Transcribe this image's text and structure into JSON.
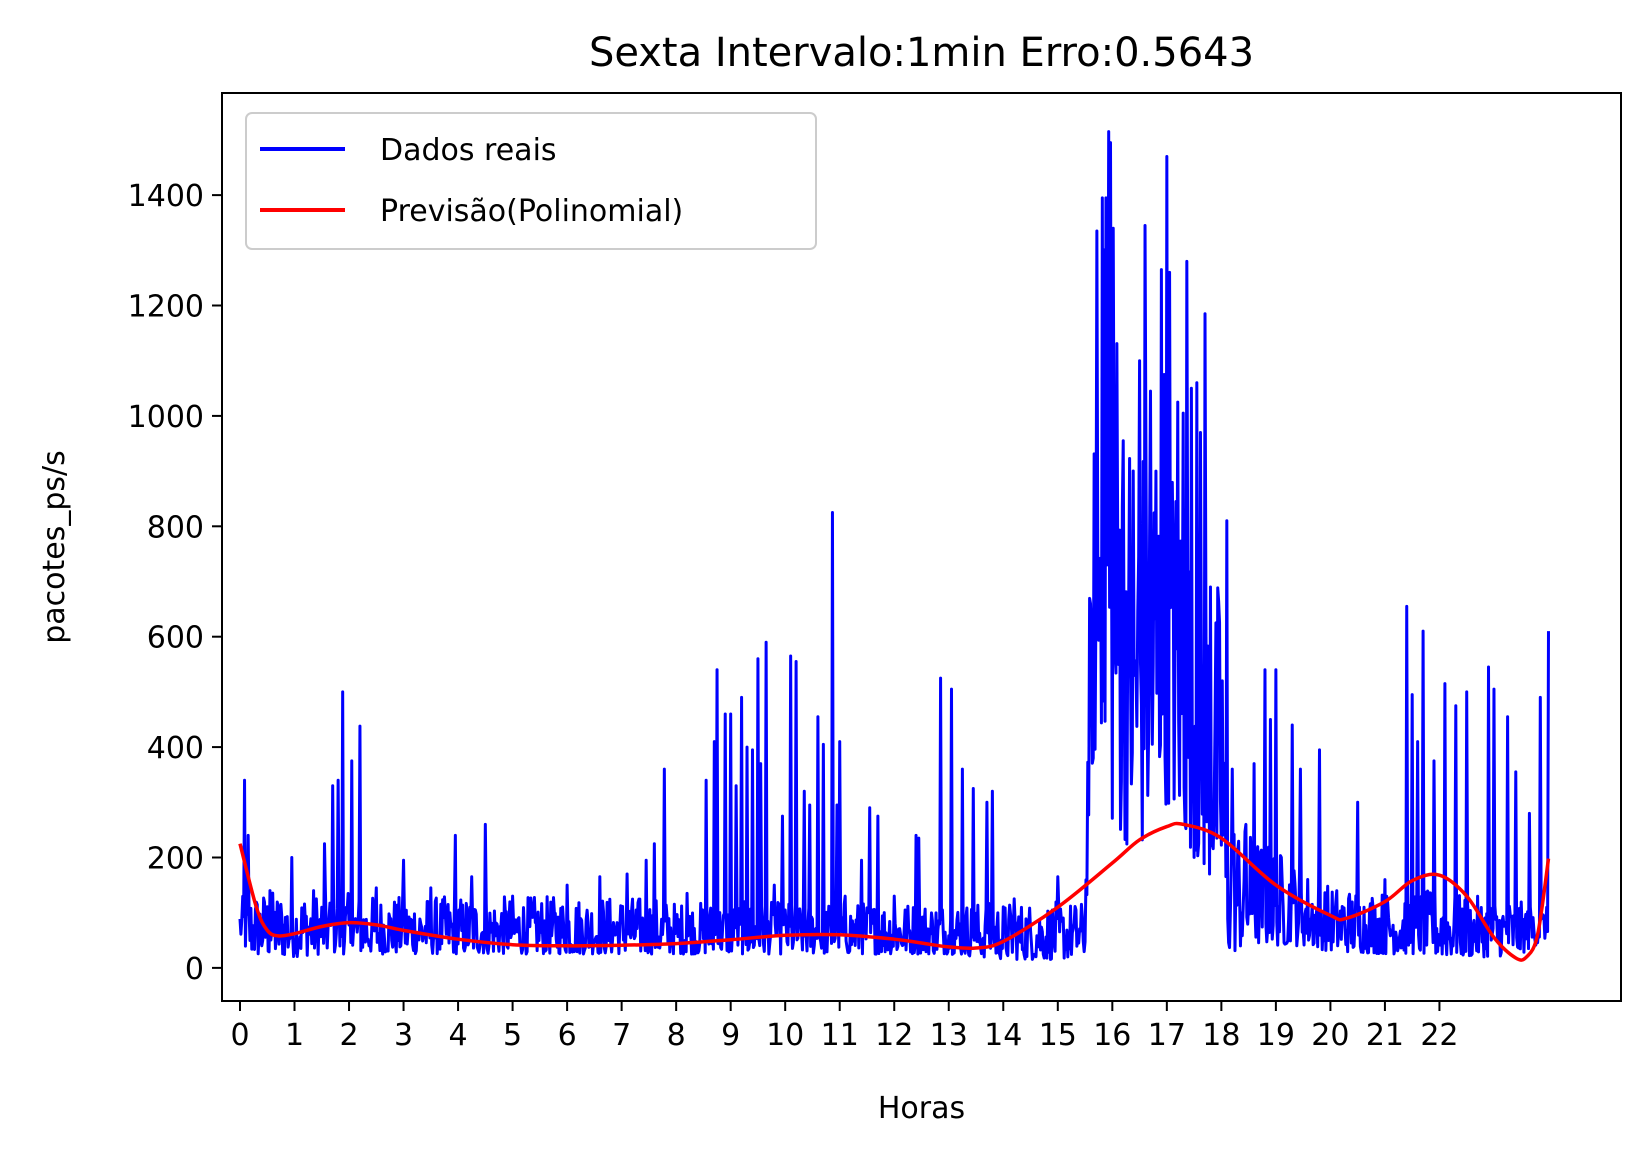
{
  "chart_data": {
    "type": "line",
    "title": "Sexta Intervalo:1min Erro:0.5643",
    "xlabel": "Horas",
    "ylabel": "pacotes_ps/s",
    "xlim": [
      -0.33,
      25.33
    ],
    "ylim": [
      -60,
      1585
    ],
    "x_ticks": [
      0,
      1,
      2,
      3,
      4,
      5,
      6,
      7,
      8,
      9,
      10,
      11,
      12,
      13,
      14,
      15,
      16,
      17,
      18,
      19,
      20,
      21,
      22
    ],
    "x_tick_labels": [
      "0",
      "1",
      "2",
      "3",
      "4",
      "5",
      "6",
      "7",
      "8",
      "9",
      "10",
      "11",
      "12",
      "13",
      "14",
      "15",
      "16",
      "17",
      "18",
      "19",
      "20",
      "21",
      "22"
    ],
    "y_ticks": [
      0,
      200,
      400,
      600,
      800,
      1000,
      1200,
      1400
    ],
    "y_tick_labels": [
      "0",
      "200",
      "400",
      "600",
      "800",
      "1000",
      "1200",
      "1400"
    ],
    "grid": false,
    "legend_position": "upper-left",
    "colors": {
      "real": "#0000ff",
      "pred": "#ff0000"
    },
    "series": [
      {
        "name": "Dados reais",
        "kind": "noisy-line",
        "x": [
          0,
          0.1,
          0.25,
          0.5,
          1,
          1.5,
          2,
          2.5,
          3,
          4,
          5,
          6,
          7,
          7.5,
          8,
          8.5,
          9,
          9.5,
          10,
          10.5,
          11,
          12,
          13,
          13.5,
          14,
          14.5,
          15,
          15.5,
          15.6,
          15.8,
          16,
          16.5,
          17,
          17.5,
          18,
          18.1,
          18.5,
          19,
          19.5,
          20,
          21,
          21.5,
          22,
          22.5,
          23,
          23.5,
          24
        ],
        "low": [
          50,
          30,
          20,
          20,
          20,
          25,
          25,
          25,
          25,
          25,
          25,
          25,
          25,
          25,
          25,
          25,
          25,
          25,
          25,
          25,
          25,
          25,
          25,
          20,
          15,
          15,
          15,
          20,
          350,
          400,
          250,
          200,
          300,
          200,
          120,
          20,
          40,
          40,
          40,
          30,
          25,
          25,
          20,
          20,
          20,
          25,
          55
        ],
        "high": [
          120,
          140,
          140,
          140,
          140,
          140,
          135,
          130,
          130,
          130,
          130,
          130,
          130,
          130,
          120,
          120,
          120,
          120,
          120,
          120,
          120,
          120,
          120,
          120,
          120,
          120,
          120,
          120,
          800,
          1350,
          1300,
          1000,
          1000,
          800,
          700,
          300,
          250,
          220,
          180,
          150,
          140,
          140,
          140,
          130,
          130,
          120,
          110
        ],
        "peaks": [
          [
            0.08,
            340
          ],
          [
            0.15,
            240
          ],
          [
            0.55,
            140
          ],
          [
            0.95,
            200
          ],
          [
            1.35,
            140
          ],
          [
            1.55,
            225
          ],
          [
            1.7,
            330
          ],
          [
            1.8,
            340
          ],
          [
            1.88,
            500
          ],
          [
            2.05,
            375
          ],
          [
            2.2,
            438
          ],
          [
            2.5,
            145
          ],
          [
            3.0,
            195
          ],
          [
            3.5,
            145
          ],
          [
            3.95,
            240
          ],
          [
            4.25,
            165
          ],
          [
            4.5,
            260
          ],
          [
            5.0,
            130
          ],
          [
            6.0,
            150
          ],
          [
            6.6,
            165
          ],
          [
            7.1,
            170
          ],
          [
            7.45,
            195
          ],
          [
            7.6,
            225
          ],
          [
            7.78,
            360
          ],
          [
            8.2,
            135
          ],
          [
            8.55,
            340
          ],
          [
            8.7,
            410
          ],
          [
            8.75,
            540
          ],
          [
            8.9,
            460
          ],
          [
            9.0,
            460
          ],
          [
            9.1,
            330
          ],
          [
            9.2,
            490
          ],
          [
            9.3,
            400
          ],
          [
            9.4,
            395
          ],
          [
            9.5,
            560
          ],
          [
            9.55,
            370
          ],
          [
            9.65,
            590
          ],
          [
            9.8,
            150
          ],
          [
            9.95,
            275
          ],
          [
            10.1,
            565
          ],
          [
            10.2,
            555
          ],
          [
            10.35,
            320
          ],
          [
            10.45,
            295
          ],
          [
            10.6,
            455
          ],
          [
            10.7,
            405
          ],
          [
            10.87,
            825
          ],
          [
            10.95,
            295
          ],
          [
            11.0,
            410
          ],
          [
            11.1,
            130
          ],
          [
            11.4,
            195
          ],
          [
            11.55,
            290
          ],
          [
            11.7,
            275
          ],
          [
            12.0,
            130
          ],
          [
            12.4,
            240
          ],
          [
            12.45,
            235
          ],
          [
            12.85,
            525
          ],
          [
            13.05,
            505
          ],
          [
            13.25,
            360
          ],
          [
            13.45,
            325
          ],
          [
            13.7,
            300
          ],
          [
            13.8,
            320
          ],
          [
            14.2,
            125
          ],
          [
            15.0,
            165
          ],
          [
            15.6,
            660
          ],
          [
            15.65,
            380
          ],
          [
            15.72,
            1335
          ],
          [
            15.82,
            1395
          ],
          [
            15.88,
            1395
          ],
          [
            15.93,
            1515
          ],
          [
            15.97,
            1495
          ],
          [
            16.02,
            1340
          ],
          [
            16.1,
            745
          ],
          [
            16.18,
            835
          ],
          [
            16.3,
            660
          ],
          [
            16.4,
            530
          ],
          [
            16.5,
            1100
          ],
          [
            16.6,
            1345
          ],
          [
            16.7,
            1045
          ],
          [
            16.8,
            900
          ],
          [
            16.9,
            1265
          ],
          [
            16.95,
            1075
          ],
          [
            17.0,
            1470
          ],
          [
            17.05,
            1260
          ],
          [
            17.12,
            745
          ],
          [
            17.2,
            1025
          ],
          [
            17.3,
            1005
          ],
          [
            17.37,
            1280
          ],
          [
            17.45,
            1050
          ],
          [
            17.55,
            1060
          ],
          [
            17.62,
            970
          ],
          [
            17.7,
            1185
          ],
          [
            17.8,
            690
          ],
          [
            17.9,
            625
          ],
          [
            18.02,
            520
          ],
          [
            18.1,
            810
          ],
          [
            18.2,
            360
          ],
          [
            18.45,
            260
          ],
          [
            18.6,
            370
          ],
          [
            18.8,
            540
          ],
          [
            18.9,
            450
          ],
          [
            19.0,
            540
          ],
          [
            19.3,
            440
          ],
          [
            19.45,
            360
          ],
          [
            19.8,
            395
          ],
          [
            20.5,
            300
          ],
          [
            21.0,
            160
          ],
          [
            21.4,
            655
          ],
          [
            21.5,
            495
          ],
          [
            21.6,
            410
          ],
          [
            21.7,
            610
          ],
          [
            21.9,
            375
          ],
          [
            22.1,
            515
          ],
          [
            22.3,
            475
          ],
          [
            22.5,
            500
          ],
          [
            22.9,
            545
          ],
          [
            23.0,
            505
          ],
          [
            23.25,
            455
          ],
          [
            23.4,
            355
          ],
          [
            23.65,
            280
          ],
          [
            23.85,
            490
          ],
          [
            24.0,
            610
          ]
        ]
      },
      {
        "name": "Previsão(Polinomial)",
        "kind": "smooth-line",
        "x": [
          0,
          0.3,
          0.5,
          0.7,
          1.0,
          1.5,
          2.0,
          2.5,
          3.0,
          4.0,
          5.0,
          6.0,
          7.0,
          8.0,
          9.0,
          10.0,
          11.0,
          12.0,
          12.5,
          13.0,
          13.5,
          14.0,
          15.0,
          16.0,
          16.5,
          17.0,
          17.3,
          18.0,
          19.0,
          20.0,
          20.3,
          21.0,
          21.5,
          22.0,
          22.5,
          23.0,
          23.4,
          23.6,
          23.8,
          24.0
        ],
        "y": [
          225,
          110,
          68,
          58,
          62,
          75,
          82,
          78,
          68,
          52,
          42,
          40,
          41,
          44,
          51,
          59,
          60,
          52,
          45,
          38,
          36,
          48,
          110,
          190,
          232,
          256,
          260,
          235,
          150,
          95,
          90,
          120,
          158,
          168,
          130,
          55,
          18,
          20,
          60,
          198
        ]
      }
    ]
  }
}
